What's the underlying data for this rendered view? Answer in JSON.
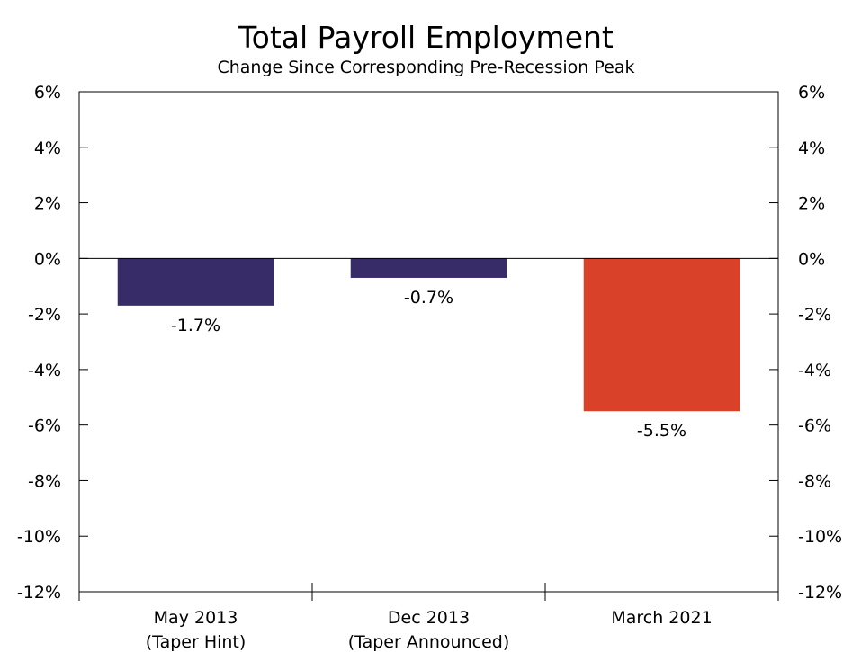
{
  "chart_data": {
    "type": "bar",
    "title": "Total Payroll Employment",
    "subtitle": "Change Since Corresponding Pre-Recession Peak",
    "categories": [
      [
        "May 2013",
        "(Taper Hint)"
      ],
      [
        "Dec 2013",
        "(Taper Announced)"
      ],
      [
        "March 2021"
      ]
    ],
    "values": [
      -1.7,
      -0.7,
      -5.5
    ],
    "value_labels": [
      "-1.7%",
      "-0.7%",
      "-5.5%"
    ],
    "bar_colors": [
      "#372c68",
      "#372c68",
      "#d94229"
    ],
    "ylim": [
      -12,
      6
    ],
    "yticks": [
      6,
      4,
      2,
      0,
      -2,
      -4,
      -6,
      -8,
      -10,
      -12
    ],
    "ytick_labels": [
      "6%",
      "4%",
      "2%",
      "0%",
      "-2%",
      "-4%",
      "-6%",
      "-8%",
      "-10%",
      "-12%"
    ],
    "grid": false,
    "legend": "none"
  }
}
